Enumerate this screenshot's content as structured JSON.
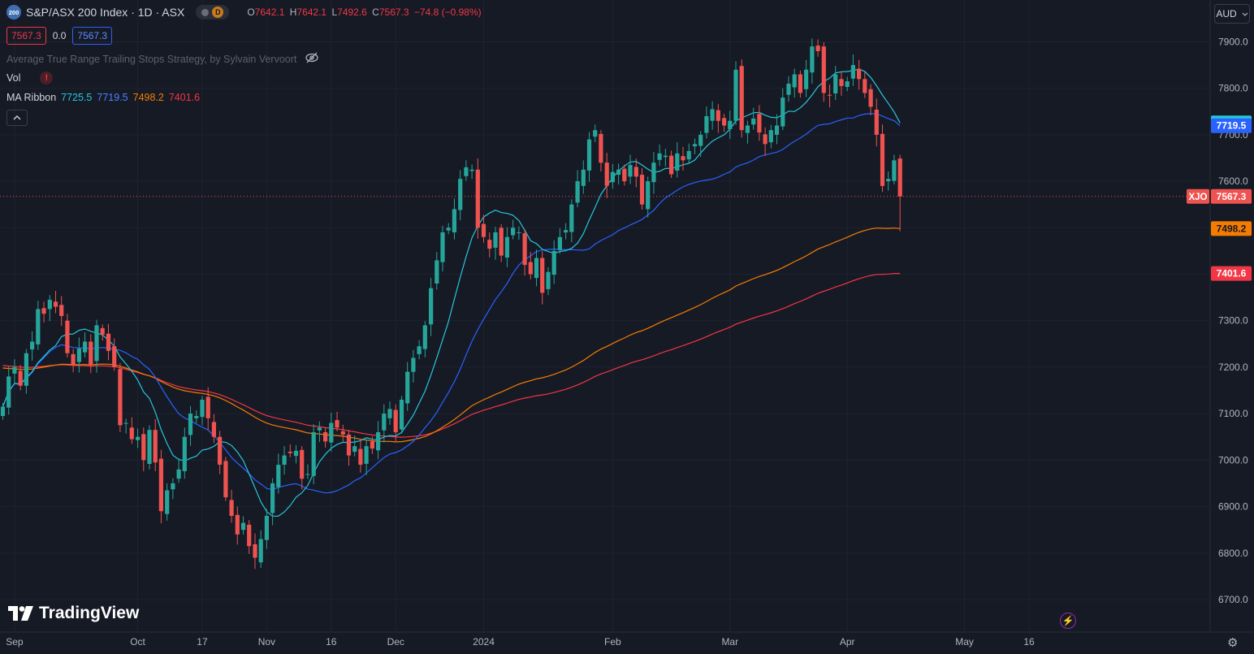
{
  "header": {
    "logo_text": "200",
    "title": "S&P/ASX 200 Index · 1D · ASX",
    "d_badge": "D",
    "ohlc": [
      {
        "k": "O",
        "v": "7642.1"
      },
      {
        "k": "H",
        "v": "7642.1"
      },
      {
        "k": "L",
        "v": "7492.6"
      },
      {
        "k": "C",
        "v": "7567.3"
      }
    ],
    "change": "−74.8 (−0.98%)",
    "sell_price": "7567.3",
    "spread": "0.0",
    "buy_price": "7567.3"
  },
  "indicators": {
    "strategy": "Average True Range Trailing Stops Strategy, by Sylvain Vervoort",
    "vol_label": "Vol",
    "vol_warning": "!",
    "ribbon_label": "MA Ribbon",
    "ribbon_values": [
      "7725.5",
      "7719.5",
      "7498.2",
      "7401.6"
    ]
  },
  "currency": "AUD",
  "brand": "TradingView",
  "colors": {
    "up": "#26a69a",
    "down": "#ef5350",
    "ma1": "#26c6da",
    "ma2": "#2962ff",
    "ma3": "#f57c00",
    "ma4": "#f23645",
    "background": "#161a25"
  },
  "chart_data": {
    "type": "candlestick",
    "y_axis_ticks": [
      6700,
      6800,
      6900,
      7000,
      7100,
      7200,
      7300,
      7400,
      7500,
      7600,
      7700,
      7800,
      7900
    ],
    "ylim": [
      6630,
      7990
    ],
    "x_axis_labels": [
      {
        "label": "Sep",
        "bar": 2
      },
      {
        "label": "Oct",
        "bar": 23
      },
      {
        "label": "17",
        "bar": 34
      },
      {
        "label": "Nov",
        "bar": 45
      },
      {
        "label": "16",
        "bar": 56
      },
      {
        "label": "Dec",
        "bar": 67
      },
      {
        "label": "2024",
        "bar": 82
      },
      {
        "label": "Feb",
        "bar": 104
      },
      {
        "label": "Mar",
        "bar": 124
      },
      {
        "label": "Apr",
        "bar": 144
      },
      {
        "label": "May",
        "bar": 164
      },
      {
        "label": "16",
        "bar": 175
      }
    ],
    "last_price": {
      "label": "XJO",
      "value": 7567.3
    },
    "closes": [
      7115,
      7180,
      7200,
      7160,
      7230,
      7255,
      7325,
      7315,
      7345,
      7330,
      7310,
      7230,
      7205,
      7240,
      7255,
      7205,
      7290,
      7270,
      7235,
      7200,
      7075,
      7080,
      7045,
      7050,
      7000,
      7065,
      6995,
      6890,
      6935,
      6950,
      6980,
      7050,
      7100,
      7095,
      7130,
      7090,
      7050,
      6990,
      6920,
      6880,
      6840,
      6865,
      6815,
      6790,
      6830,
      6880,
      6950,
      6990,
      7010,
      7015,
      7020,
      6960,
      6970,
      7060,
      7070,
      7040,
      7080,
      7070,
      7055,
      7010,
      7030,
      6990,
      7030,
      7025,
      7060,
      7100,
      7110,
      7060,
      7130,
      7190,
      7220,
      7245,
      7290,
      7370,
      7430,
      7490,
      7500,
      7540,
      7605,
      7630,
      7625,
      7500,
      7480,
      7455,
      7490,
      7440,
      7480,
      7500,
      7490,
      7420,
      7400,
      7435,
      7360,
      7405,
      7450,
      7480,
      7495,
      7550,
      7600,
      7625,
      7690,
      7710,
      7640,
      7590,
      7620,
      7625,
      7600,
      7635,
      7610,
      7550,
      7600,
      7640,
      7660,
      7655,
      7615,
      7660,
      7645,
      7665,
      7680,
      7700,
      7740,
      7755,
      7730,
      7720,
      7730,
      7840,
      7710,
      7720,
      7735,
      7705,
      7680,
      7710,
      7720,
      7780,
      7810,
      7830,
      7790,
      7840,
      7890,
      7880,
      7790,
      7785,
      7830,
      7805,
      7815,
      7850,
      7820,
      7790,
      7760,
      7700,
      7590,
      7605,
      7645,
      7567.3
    ],
    "ma_ribbon": [
      {
        "name": "MA Ribbon",
        "value": 7725.5
      },
      {
        "name": "MA Ribbon",
        "value": 7719.5
      },
      {
        "name": "MA Ribbon",
        "value": 7498.2
      },
      {
        "name": "MA Ribbon",
        "value": 7401.6
      }
    ],
    "grid": true
  }
}
